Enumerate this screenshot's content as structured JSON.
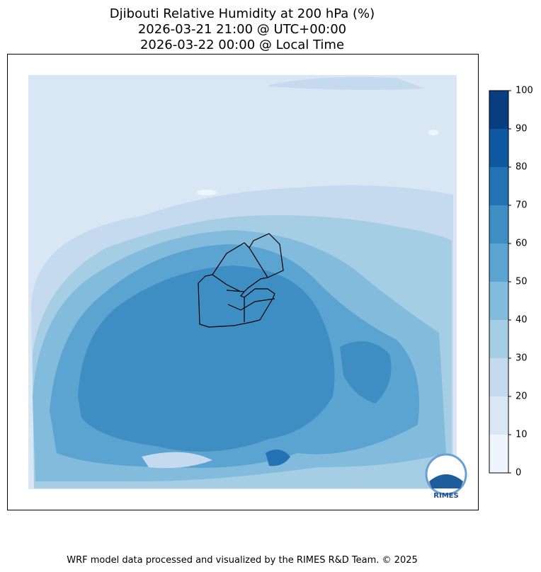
{
  "title": [
    "Djibouti Relative Humidity at 200 hPa (%)",
    "2026-03-21 21:00 @ UTC+00:00",
    "2026-03-22 00:00 @ Local Time"
  ],
  "colorbar": {
    "lim": [
      0,
      100
    ],
    "ticks": [
      0,
      10,
      20,
      30,
      40,
      50,
      60,
      70,
      80,
      90,
      100
    ],
    "colors": [
      "#eff5fc",
      "#d9e7f5",
      "#c5daee",
      "#a5cde3",
      "#82bbdb",
      "#5ba3d0",
      "#3e8ec4",
      "#2272b4",
      "#0e58a2",
      "#083d7f"
    ]
  },
  "logo": "RIMES",
  "footer": "WRF model data processed and visualized by the RIMES R&D Team. © 2025"
}
